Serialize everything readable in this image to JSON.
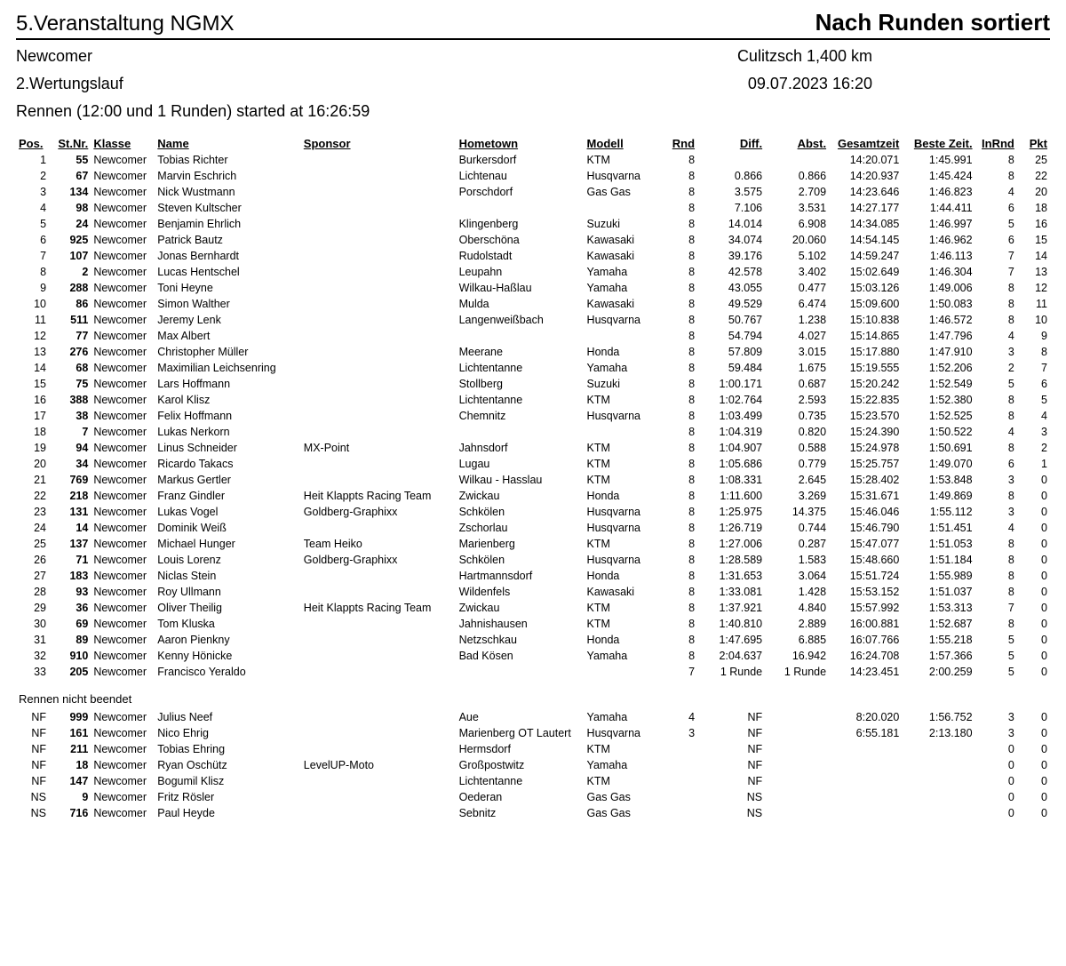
{
  "header": {
    "title_left": "5.Veranstaltung NGMX",
    "title_right": "Nach Runden sortiert",
    "class_name": "Newcomer",
    "track_info": "Culitzsch 1,400 km",
    "heat": "2.Wertungslauf",
    "datetime": "09.07.2023 16:20",
    "start_line": "Rennen (12:00 und 1 Runden) started at 16:26:59"
  },
  "columns": {
    "pos": "Pos.",
    "stnr": "St.Nr.",
    "klasse": "Klasse",
    "name": "Name",
    "sponsor": "Sponsor",
    "hometown": "Hometown",
    "modell": "Modell",
    "rnd": "Rnd",
    "diff": "Diff.",
    "abst": "Abst.",
    "gesamt": "Gesamtzeit",
    "beste": "Beste Zeit.",
    "inrnd": "InRnd",
    "pkt": "Pkt"
  },
  "dnf_label": "Rennen nicht beendet",
  "rows": [
    {
      "pos": "1",
      "stnr": "55",
      "klasse": "Newcomer",
      "name": "Tobias Richter",
      "sponsor": "",
      "home": "Burkersdorf",
      "model": "KTM",
      "rnd": "8",
      "diff": "",
      "abst": "",
      "gesamt": "14:20.071",
      "beste": "1:45.991",
      "inrnd": "8",
      "pkt": "25"
    },
    {
      "pos": "2",
      "stnr": "67",
      "klasse": "Newcomer",
      "name": "Marvin Eschrich",
      "sponsor": "",
      "home": "Lichtenau",
      "model": "Husqvarna",
      "rnd": "8",
      "diff": "0.866",
      "abst": "0.866",
      "gesamt": "14:20.937",
      "beste": "1:45.424",
      "inrnd": "8",
      "pkt": "22"
    },
    {
      "pos": "3",
      "stnr": "134",
      "klasse": "Newcomer",
      "name": "Nick Wustmann",
      "sponsor": "",
      "home": "Porschdorf",
      "model": "Gas Gas",
      "rnd": "8",
      "diff": "3.575",
      "abst": "2.709",
      "gesamt": "14:23.646",
      "beste": "1:46.823",
      "inrnd": "4",
      "pkt": "20"
    },
    {
      "pos": "4",
      "stnr": "98",
      "klasse": "Newcomer",
      "name": "Steven Kultscher",
      "sponsor": "",
      "home": "",
      "model": "",
      "rnd": "8",
      "diff": "7.106",
      "abst": "3.531",
      "gesamt": "14:27.177",
      "beste": "1:44.411",
      "inrnd": "6",
      "pkt": "18"
    },
    {
      "pos": "5",
      "stnr": "24",
      "klasse": "Newcomer",
      "name": "Benjamin Ehrlich",
      "sponsor": "",
      "home": "Klingenberg",
      "model": "Suzuki",
      "rnd": "8",
      "diff": "14.014",
      "abst": "6.908",
      "gesamt": "14:34.085",
      "beste": "1:46.997",
      "inrnd": "5",
      "pkt": "16"
    },
    {
      "pos": "6",
      "stnr": "925",
      "klasse": "Newcomer",
      "name": "Patrick Bautz",
      "sponsor": "",
      "home": "Oberschöna",
      "model": "Kawasaki",
      "rnd": "8",
      "diff": "34.074",
      "abst": "20.060",
      "gesamt": "14:54.145",
      "beste": "1:46.962",
      "inrnd": "6",
      "pkt": "15"
    },
    {
      "pos": "7",
      "stnr": "107",
      "klasse": "Newcomer",
      "name": "Jonas Bernhardt",
      "sponsor": "",
      "home": "Rudolstadt",
      "model": "Kawasaki",
      "rnd": "8",
      "diff": "39.176",
      "abst": "5.102",
      "gesamt": "14:59.247",
      "beste": "1:46.113",
      "inrnd": "7",
      "pkt": "14"
    },
    {
      "pos": "8",
      "stnr": "2",
      "klasse": "Newcomer",
      "name": "Lucas Hentschel",
      "sponsor": "",
      "home": "Leupahn",
      "model": "Yamaha",
      "rnd": "8",
      "diff": "42.578",
      "abst": "3.402",
      "gesamt": "15:02.649",
      "beste": "1:46.304",
      "inrnd": "7",
      "pkt": "13"
    },
    {
      "pos": "9",
      "stnr": "288",
      "klasse": "Newcomer",
      "name": "Toni Heyne",
      "sponsor": "",
      "home": "Wilkau-Haßlau",
      "model": "Yamaha",
      "rnd": "8",
      "diff": "43.055",
      "abst": "0.477",
      "gesamt": "15:03.126",
      "beste": "1:49.006",
      "inrnd": "8",
      "pkt": "12"
    },
    {
      "pos": "10",
      "stnr": "86",
      "klasse": "Newcomer",
      "name": "Simon Walther",
      "sponsor": "",
      "home": "Mulda",
      "model": "Kawasaki",
      "rnd": "8",
      "diff": "49.529",
      "abst": "6.474",
      "gesamt": "15:09.600",
      "beste": "1:50.083",
      "inrnd": "8",
      "pkt": "11"
    },
    {
      "pos": "11",
      "stnr": "511",
      "klasse": "Newcomer",
      "name": "Jeremy Lenk",
      "sponsor": "",
      "home": "Langenweißbach",
      "model": "Husqvarna",
      "rnd": "8",
      "diff": "50.767",
      "abst": "1.238",
      "gesamt": "15:10.838",
      "beste": "1:46.572",
      "inrnd": "8",
      "pkt": "10"
    },
    {
      "pos": "12",
      "stnr": "77",
      "klasse": "Newcomer",
      "name": "Max Albert",
      "sponsor": "",
      "home": "",
      "model": "",
      "rnd": "8",
      "diff": "54.794",
      "abst": "4.027",
      "gesamt": "15:14.865",
      "beste": "1:47.796",
      "inrnd": "4",
      "pkt": "9"
    },
    {
      "pos": "13",
      "stnr": "276",
      "klasse": "Newcomer",
      "name": "Christopher Müller",
      "sponsor": "",
      "home": "Meerane",
      "model": "Honda",
      "rnd": "8",
      "diff": "57.809",
      "abst": "3.015",
      "gesamt": "15:17.880",
      "beste": "1:47.910",
      "inrnd": "3",
      "pkt": "8"
    },
    {
      "pos": "14",
      "stnr": "68",
      "klasse": "Newcomer",
      "name": "Maximilian Leichsenring",
      "sponsor": "",
      "home": "Lichtentanne",
      "model": "Yamaha",
      "rnd": "8",
      "diff": "59.484",
      "abst": "1.675",
      "gesamt": "15:19.555",
      "beste": "1:52.206",
      "inrnd": "2",
      "pkt": "7"
    },
    {
      "pos": "15",
      "stnr": "75",
      "klasse": "Newcomer",
      "name": "Lars Hoffmann",
      "sponsor": "",
      "home": "Stollberg",
      "model": "Suzuki",
      "rnd": "8",
      "diff": "1:00.171",
      "abst": "0.687",
      "gesamt": "15:20.242",
      "beste": "1:52.549",
      "inrnd": "5",
      "pkt": "6"
    },
    {
      "pos": "16",
      "stnr": "388",
      "klasse": "Newcomer",
      "name": "Karol Klisz",
      "sponsor": "",
      "home": "Lichtentanne",
      "model": "KTM",
      "rnd": "8",
      "diff": "1:02.764",
      "abst": "2.593",
      "gesamt": "15:22.835",
      "beste": "1:52.380",
      "inrnd": "8",
      "pkt": "5"
    },
    {
      "pos": "17",
      "stnr": "38",
      "klasse": "Newcomer",
      "name": "Felix Hoffmann",
      "sponsor": "",
      "home": "Chemnitz",
      "model": "Husqvarna",
      "rnd": "8",
      "diff": "1:03.499",
      "abst": "0.735",
      "gesamt": "15:23.570",
      "beste": "1:52.525",
      "inrnd": "8",
      "pkt": "4"
    },
    {
      "pos": "18",
      "stnr": "7",
      "klasse": "Newcomer",
      "name": "Lukas Nerkorn",
      "sponsor": "",
      "home": "",
      "model": "",
      "rnd": "8",
      "diff": "1:04.319",
      "abst": "0.820",
      "gesamt": "15:24.390",
      "beste": "1:50.522",
      "inrnd": "4",
      "pkt": "3"
    },
    {
      "pos": "19",
      "stnr": "94",
      "klasse": "Newcomer",
      "name": "Linus Schneider",
      "sponsor": "MX-Point",
      "home": "Jahnsdorf",
      "model": "KTM",
      "rnd": "8",
      "diff": "1:04.907",
      "abst": "0.588",
      "gesamt": "15:24.978",
      "beste": "1:50.691",
      "inrnd": "8",
      "pkt": "2"
    },
    {
      "pos": "20",
      "stnr": "34",
      "klasse": "Newcomer",
      "name": "Ricardo Takacs",
      "sponsor": "",
      "home": "Lugau",
      "model": "KTM",
      "rnd": "8",
      "diff": "1:05.686",
      "abst": "0.779",
      "gesamt": "15:25.757",
      "beste": "1:49.070",
      "inrnd": "6",
      "pkt": "1"
    },
    {
      "pos": "21",
      "stnr": "769",
      "klasse": "Newcomer",
      "name": "Markus Gertler",
      "sponsor": "",
      "home": "Wilkau - Hasslau",
      "model": "KTM",
      "rnd": "8",
      "diff": "1:08.331",
      "abst": "2.645",
      "gesamt": "15:28.402",
      "beste": "1:53.848",
      "inrnd": "3",
      "pkt": "0"
    },
    {
      "pos": "22",
      "stnr": "218",
      "klasse": "Newcomer",
      "name": "Franz Gindler",
      "sponsor": "Heit Klappts Racing Team",
      "home": "Zwickau",
      "model": "Honda",
      "rnd": "8",
      "diff": "1:11.600",
      "abst": "3.269",
      "gesamt": "15:31.671",
      "beste": "1:49.869",
      "inrnd": "8",
      "pkt": "0"
    },
    {
      "pos": "23",
      "stnr": "131",
      "klasse": "Newcomer",
      "name": "Lukas Vogel",
      "sponsor": "Goldberg-Graphixx",
      "home": "Schkölen",
      "model": "Husqvarna",
      "rnd": "8",
      "diff": "1:25.975",
      "abst": "14.375",
      "gesamt": "15:46.046",
      "beste": "1:55.112",
      "inrnd": "3",
      "pkt": "0"
    },
    {
      "pos": "24",
      "stnr": "14",
      "klasse": "Newcomer",
      "name": "Dominik Weiß",
      "sponsor": "",
      "home": "Zschorlau",
      "model": "Husqvarna",
      "rnd": "8",
      "diff": "1:26.719",
      "abst": "0.744",
      "gesamt": "15:46.790",
      "beste": "1:51.451",
      "inrnd": "4",
      "pkt": "0"
    },
    {
      "pos": "25",
      "stnr": "137",
      "klasse": "Newcomer",
      "name": "Michael Hunger",
      "sponsor": "Team Heiko",
      "home": "Marienberg",
      "model": "KTM",
      "rnd": "8",
      "diff": "1:27.006",
      "abst": "0.287",
      "gesamt": "15:47.077",
      "beste": "1:51.053",
      "inrnd": "8",
      "pkt": "0"
    },
    {
      "pos": "26",
      "stnr": "71",
      "klasse": "Newcomer",
      "name": "Louis Lorenz",
      "sponsor": "Goldberg-Graphixx",
      "home": "Schkölen",
      "model": "Husqvarna",
      "rnd": "8",
      "diff": "1:28.589",
      "abst": "1.583",
      "gesamt": "15:48.660",
      "beste": "1:51.184",
      "inrnd": "8",
      "pkt": "0"
    },
    {
      "pos": "27",
      "stnr": "183",
      "klasse": "Newcomer",
      "name": "Niclas Stein",
      "sponsor": "",
      "home": "Hartmannsdorf",
      "model": "Honda",
      "rnd": "8",
      "diff": "1:31.653",
      "abst": "3.064",
      "gesamt": "15:51.724",
      "beste": "1:55.989",
      "inrnd": "8",
      "pkt": "0"
    },
    {
      "pos": "28",
      "stnr": "93",
      "klasse": "Newcomer",
      "name": "Roy Ullmann",
      "sponsor": "",
      "home": "Wildenfels",
      "model": "Kawasaki",
      "rnd": "8",
      "diff": "1:33.081",
      "abst": "1.428",
      "gesamt": "15:53.152",
      "beste": "1:51.037",
      "inrnd": "8",
      "pkt": "0"
    },
    {
      "pos": "29",
      "stnr": "36",
      "klasse": "Newcomer",
      "name": "Oliver Theilig",
      "sponsor": "Heit Klappts Racing Team",
      "home": "Zwickau",
      "model": "KTM",
      "rnd": "8",
      "diff": "1:37.921",
      "abst": "4.840",
      "gesamt": "15:57.992",
      "beste": "1:53.313",
      "inrnd": "7",
      "pkt": "0"
    },
    {
      "pos": "30",
      "stnr": "69",
      "klasse": "Newcomer",
      "name": "Tom Kluska",
      "sponsor": "",
      "home": "Jahnishausen",
      "model": "KTM",
      "rnd": "8",
      "diff": "1:40.810",
      "abst": "2.889",
      "gesamt": "16:00.881",
      "beste": "1:52.687",
      "inrnd": "8",
      "pkt": "0"
    },
    {
      "pos": "31",
      "stnr": "89",
      "klasse": "Newcomer",
      "name": "Aaron Pienkny",
      "sponsor": "",
      "home": "Netzschkau",
      "model": "Honda",
      "rnd": "8",
      "diff": "1:47.695",
      "abst": "6.885",
      "gesamt": "16:07.766",
      "beste": "1:55.218",
      "inrnd": "5",
      "pkt": "0"
    },
    {
      "pos": "32",
      "stnr": "910",
      "klasse": "Newcomer",
      "name": "Kenny Hönicke",
      "sponsor": "",
      "home": "Bad Kösen",
      "model": "Yamaha",
      "rnd": "8",
      "diff": "2:04.637",
      "abst": "16.942",
      "gesamt": "16:24.708",
      "beste": "1:57.366",
      "inrnd": "5",
      "pkt": "0"
    },
    {
      "pos": "33",
      "stnr": "205",
      "klasse": "Newcomer",
      "name": "Francisco Yeraldo",
      "sponsor": "",
      "home": "",
      "model": "",
      "rnd": "7",
      "diff": "1 Runde",
      "abst": "1 Runde",
      "gesamt": "14:23.451",
      "beste": "2:00.259",
      "inrnd": "5",
      "pkt": "0"
    }
  ],
  "dnf_rows": [
    {
      "pos": "NF",
      "stnr": "999",
      "klasse": "Newcomer",
      "name": "Julius Neef",
      "sponsor": "",
      "home": "Aue",
      "model": "Yamaha",
      "rnd": "4",
      "diff": "NF",
      "abst": "",
      "gesamt": "8:20.020",
      "beste": "1:56.752",
      "inrnd": "3",
      "pkt": "0"
    },
    {
      "pos": "NF",
      "stnr": "161",
      "klasse": "Newcomer",
      "name": "Nico Ehrig",
      "sponsor": "",
      "home": "Marienberg OT Lautert",
      "model": "Husqvarna",
      "rnd": "3",
      "diff": "NF",
      "abst": "",
      "gesamt": "6:55.181",
      "beste": "2:13.180",
      "inrnd": "3",
      "pkt": "0"
    },
    {
      "pos": "NF",
      "stnr": "211",
      "klasse": "Newcomer",
      "name": "Tobias Ehring",
      "sponsor": "",
      "home": "Hermsdorf",
      "model": "KTM",
      "rnd": "",
      "diff": "NF",
      "abst": "",
      "gesamt": "",
      "beste": "",
      "inrnd": "0",
      "pkt": "0"
    },
    {
      "pos": "NF",
      "stnr": "18",
      "klasse": "Newcomer",
      "name": "Ryan Oschütz",
      "sponsor": "LevelUP-Moto",
      "home": "Großpostwitz",
      "model": "Yamaha",
      "rnd": "",
      "diff": "NF",
      "abst": "",
      "gesamt": "",
      "beste": "",
      "inrnd": "0",
      "pkt": "0"
    },
    {
      "pos": "NF",
      "stnr": "147",
      "klasse": "Newcomer",
      "name": "Bogumil Klisz",
      "sponsor": "",
      "home": "Lichtentanne",
      "model": "KTM",
      "rnd": "",
      "diff": "NF",
      "abst": "",
      "gesamt": "",
      "beste": "",
      "inrnd": "0",
      "pkt": "0"
    },
    {
      "pos": "NS",
      "stnr": "9",
      "klasse": "Newcomer",
      "name": "Fritz Rösler",
      "sponsor": "",
      "home": "Oederan",
      "model": "Gas Gas",
      "rnd": "",
      "diff": "NS",
      "abst": "",
      "gesamt": "",
      "beste": "",
      "inrnd": "0",
      "pkt": "0"
    },
    {
      "pos": "NS",
      "stnr": "716",
      "klasse": "Newcomer",
      "name": "Paul Heyde",
      "sponsor": "",
      "home": "Sebnitz",
      "model": "Gas Gas",
      "rnd": "",
      "diff": "NS",
      "abst": "",
      "gesamt": "",
      "beste": "",
      "inrnd": "0",
      "pkt": "0"
    }
  ]
}
